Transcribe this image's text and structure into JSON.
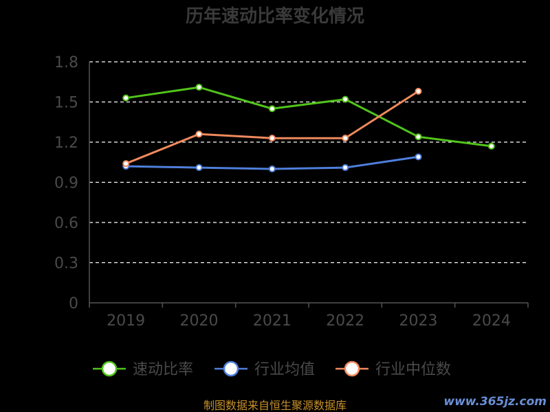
{
  "chart_data": {
    "type": "line",
    "title": "历年速动比率变化情况",
    "categories": [
      "2019",
      "2020",
      "2021",
      "2022",
      "2023",
      "2024"
    ],
    "ylim": [
      0,
      1.8
    ],
    "yticks": [
      "0",
      "0.3",
      "0.6",
      "0.9",
      "1.2",
      "1.5",
      "1.8"
    ],
    "grid": true,
    "legend_position": "bottom",
    "series": [
      {
        "name": "速动比率",
        "color": "#52c41a",
        "values": [
          1.53,
          1.61,
          1.45,
          1.52,
          1.24,
          1.17
        ]
      },
      {
        "name": "行业均值",
        "color": "#4f7fdc",
        "values": [
          1.02,
          1.01,
          1.0,
          1.01,
          1.09,
          null
        ]
      },
      {
        "name": "行业中位数",
        "color": "#f08a5d",
        "values": [
          1.04,
          1.26,
          1.23,
          1.23,
          1.58,
          null
        ]
      }
    ]
  },
  "footer": {
    "source": "制图数据来自恒生聚源数据库",
    "watermark": "www.365jz.com"
  }
}
